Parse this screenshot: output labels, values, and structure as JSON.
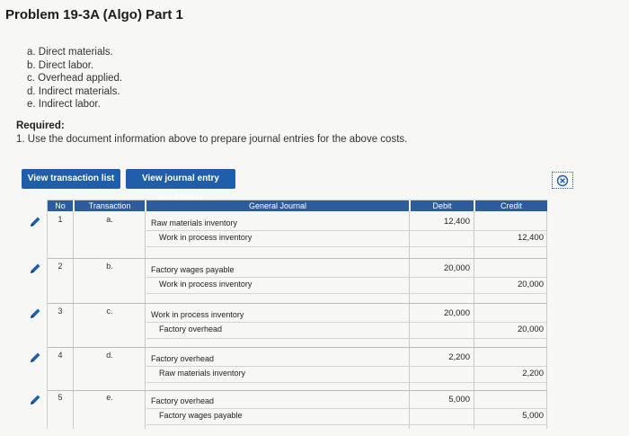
{
  "page": {
    "title": "Problem 19-3A (Algo) Part 1",
    "items": [
      "a. Direct materials.",
      "b. Direct labor.",
      "c. Overhead applied.",
      "d. Indirect materials.",
      "e. Indirect labor."
    ],
    "required_title": "Required:",
    "required_text": "1. Use the document information above to prepare journal entries for the above costs."
  },
  "buttons": {
    "view_transaction_list": "View transaction list",
    "view_journal_entry_worksheet": "View journal entry worksheet"
  },
  "table": {
    "headers": {
      "no": "No",
      "transaction": "Transaction",
      "general_journal": "General Journal",
      "debit": "Debit",
      "credit": "Credit"
    },
    "entries": [
      {
        "no": "1",
        "transaction": "a.",
        "debit_account": "Raw materials inventory",
        "credit_account": "Work in process inventory",
        "debit": "12,400",
        "credit": "12,400"
      },
      {
        "no": "2",
        "transaction": "b.",
        "debit_account": "Factory wages payable",
        "credit_account": "Work in process inventory",
        "debit": "20,000",
        "credit": "20,000"
      },
      {
        "no": "3",
        "transaction": "c.",
        "debit_account": "Work in process inventory",
        "credit_account": "Factory overhead",
        "debit": "20,000",
        "credit": "20,000"
      },
      {
        "no": "4",
        "transaction": "d.",
        "debit_account": "Factory overhead",
        "credit_account": "Raw materials inventory",
        "debit": "2,200",
        "credit": "2,200"
      },
      {
        "no": "5",
        "transaction": "e.",
        "debit_account": "Factory overhead",
        "credit_account": "Factory wages payable",
        "debit": "5,000",
        "credit": "5,000"
      }
    ]
  },
  "colors": {
    "button_bg": "#1f5ea8",
    "header_bg": "#2d5c9c",
    "edit_icon": "#1f5ea8"
  }
}
